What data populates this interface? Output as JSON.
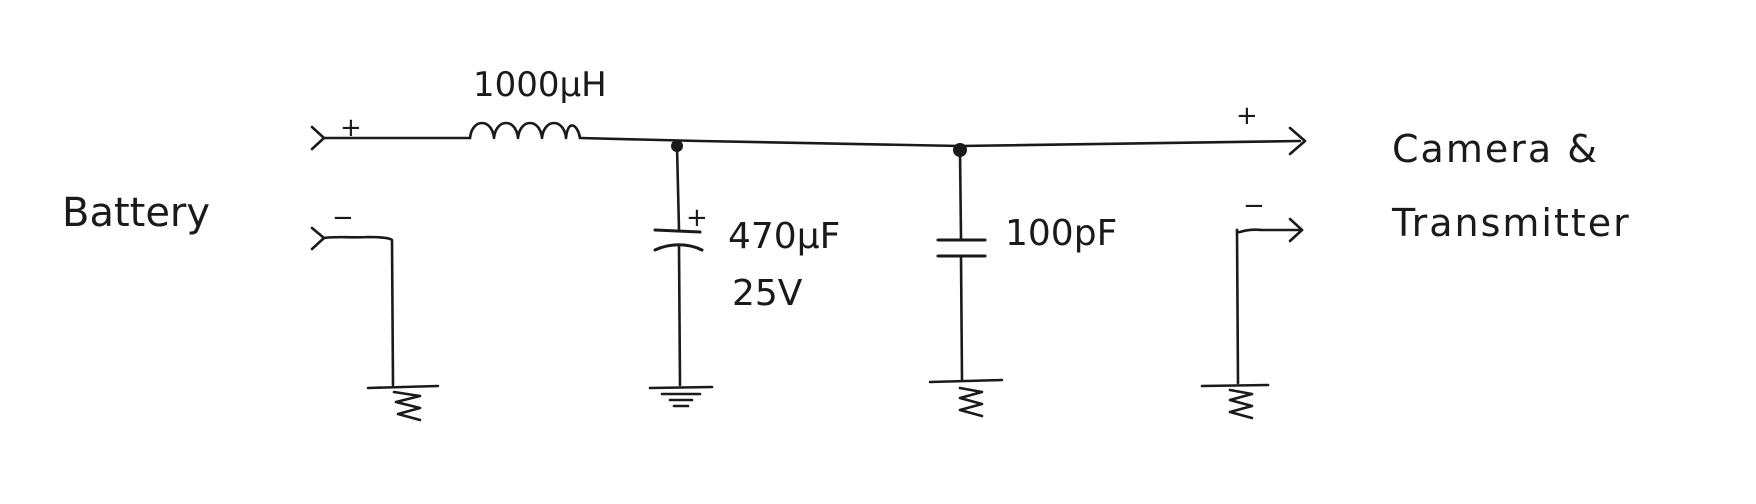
{
  "labels": {
    "battery": "Battery",
    "output_line1": "Camera &",
    "output_line2": "Transmitter",
    "inductor": "1000µH",
    "cap1_value": "470µF",
    "cap1_voltage": "25V",
    "cap2_value": "100pF"
  },
  "polarity": {
    "battery_plus": "+",
    "battery_minus": "−",
    "cap1_plus": "+",
    "output_plus": "+",
    "output_minus": "−"
  }
}
